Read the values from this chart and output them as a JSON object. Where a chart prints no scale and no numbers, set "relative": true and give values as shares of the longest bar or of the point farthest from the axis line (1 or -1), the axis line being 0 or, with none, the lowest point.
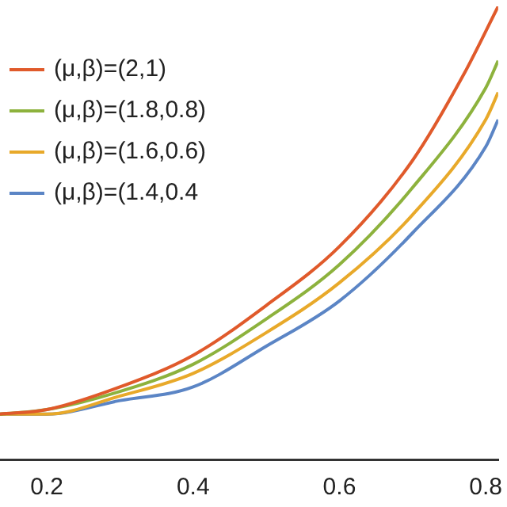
{
  "chart_data": {
    "type": "line",
    "relative": true,
    "xlim": [
      0.136,
      0.817
    ],
    "xticks": [
      0.2,
      0.4,
      0.6,
      0.8
    ],
    "legend": "top left",
    "marker": "none",
    "line_style": "solid",
    "grid": false,
    "series": [
      {
        "name": "(μ,β)=(2,1)",
        "color": "#e05a2b",
        "x": [
          0.136,
          0.2,
          0.3,
          0.4,
          0.5,
          0.6,
          0.7,
          0.77,
          0.817
        ],
        "values": [
          0.1,
          0.11,
          0.16,
          0.23,
          0.34,
          0.47,
          0.66,
          0.85,
          1.0
        ]
      },
      {
        "name": "(μ,β)=(1.8,0.8)",
        "color": "#8db23d",
        "x": [
          0.136,
          0.2,
          0.3,
          0.4,
          0.5,
          0.6,
          0.7,
          0.8,
          0.817
        ],
        "values": [
          0.1,
          0.11,
          0.15,
          0.21,
          0.31,
          0.43,
          0.6,
          0.82,
          0.88
        ]
      },
      {
        "name": "(μ,β)=(1.6,0.6)",
        "color": "#e8a92a",
        "x": [
          0.136,
          0.2,
          0.3,
          0.4,
          0.5,
          0.6,
          0.7,
          0.8,
          0.817
        ],
        "values": [
          0.1,
          0.1,
          0.14,
          0.19,
          0.28,
          0.39,
          0.54,
          0.75,
          0.81
        ]
      },
      {
        "name": "(μ,β)=(1.4,0.4",
        "color": "#5b85c5",
        "x": [
          0.136,
          0.2,
          0.3,
          0.4,
          0.5,
          0.6,
          0.7,
          0.8,
          0.817
        ],
        "values": [
          0.1,
          0.1,
          0.13,
          0.16,
          0.25,
          0.35,
          0.5,
          0.69,
          0.75
        ]
      }
    ]
  }
}
